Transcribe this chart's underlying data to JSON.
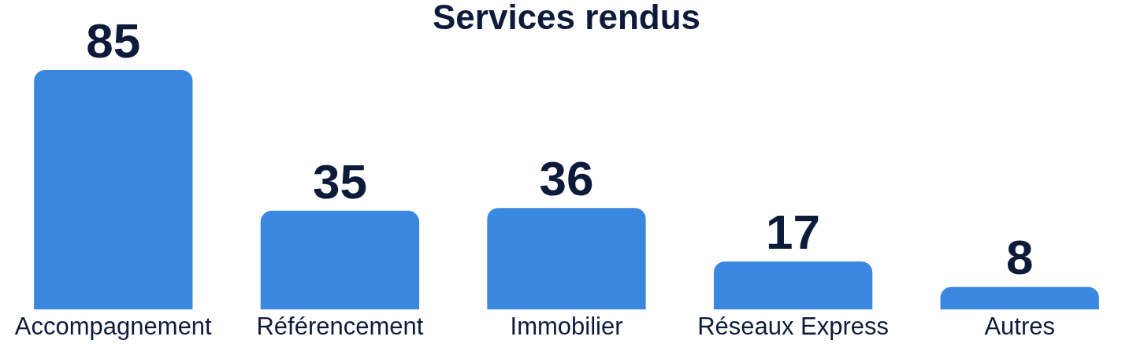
{
  "chart_data": {
    "type": "bar",
    "title": "Services rendus",
    "categories": [
      "Accompagnement",
      "Référencement",
      "Immobilier",
      "Réseaux Express",
      "Autres"
    ],
    "values": [
      85,
      35,
      36,
      17,
      8
    ],
    "color": "#3a87e0",
    "data_labels": true
  }
}
